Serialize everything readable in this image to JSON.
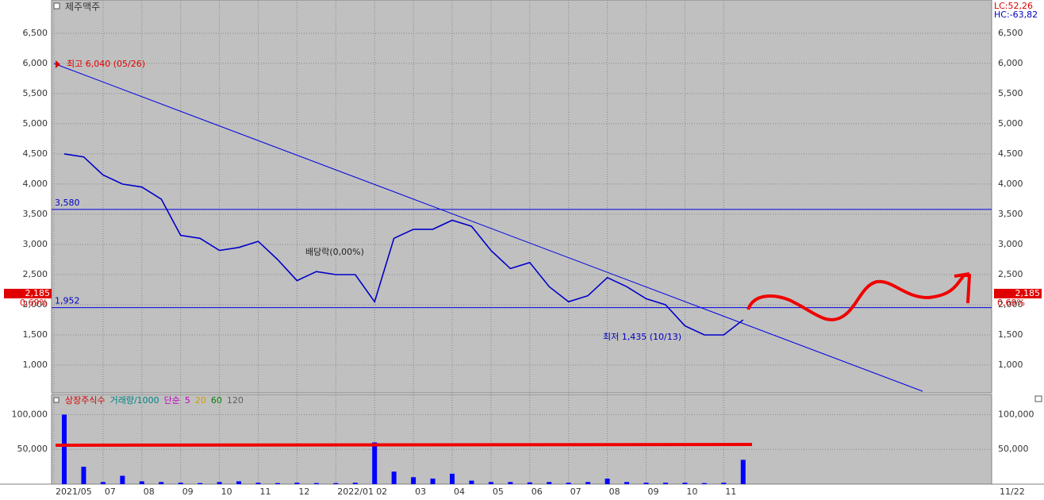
{
  "chart_data": [
    {
      "type": "line",
      "title": "제주맥주",
      "categories": [
        "2021/05",
        null,
        "07",
        null,
        "08",
        null,
        "09",
        null,
        "10",
        null,
        "11",
        null,
        "12",
        null,
        "2022/01",
        null,
        "02",
        null,
        "03",
        null,
        "04",
        null,
        "05",
        null,
        "06",
        null,
        "07",
        null,
        "08",
        null,
        "09",
        null,
        "10",
        null,
        "11",
        null,
        null,
        null,
        null,
        null,
        null,
        null,
        null,
        null,
        null,
        null,
        null,
        null
      ],
      "values": [
        4500,
        4450,
        4150,
        4000,
        3950,
        3750,
        3150,
        3100,
        2900,
        2950,
        3050,
        2750,
        2400,
        2550,
        2500,
        2500,
        2050,
        3100,
        3250,
        3250,
        3400,
        3300,
        2900,
        2600,
        2700,
        2300,
        2050,
        2150,
        2450,
        2300,
        2100,
        2000,
        1650,
        1500,
        1500,
        1750,
        null,
        null,
        null,
        null,
        null,
        null,
        null,
        null,
        null,
        null,
        null,
        null
      ],
      "color": "#0000c8",
      "ylim": [
        540,
        7050
      ],
      "yticks": [
        {
          "value": 1000,
          "label": "1,000"
        },
        {
          "value": 1500,
          "label": "1,500"
        },
        {
          "value": 2000,
          "label": "2,000"
        },
        {
          "value": 2500,
          "label": "2,500"
        },
        {
          "value": 3000,
          "label": "3,000"
        },
        {
          "value": 3500,
          "label": "3,500"
        },
        {
          "value": 4000,
          "label": "4,000"
        },
        {
          "value": 4500,
          "label": "4,500"
        },
        {
          "value": 5000,
          "label": "5,000"
        },
        {
          "value": 5500,
          "label": "5,500"
        },
        {
          "value": 6000,
          "label": "6,000"
        },
        {
          "value": 6500,
          "label": "6,500"
        }
      ],
      "grid": true,
      "levels": [
        {
          "value": 3580,
          "label": "3,580"
        },
        {
          "value": 1952,
          "label": "1,952"
        }
      ],
      "current": {
        "value": 2185,
        "label": "2,185"
      },
      "change_label": "0,69%",
      "high_label": "최고 6,040 (05/26)",
      "low_label": "최저 1,435 (10/13)",
      "note": "배당락(0,00%)",
      "lc": "LC:52,26",
      "hc": "HC:-63,82",
      "last_date": "11/22"
    },
    {
      "type": "bar",
      "legend": [
        {
          "name": "상장주식수",
          "color": "#d00000"
        },
        {
          "name": "거래량/1000",
          "color": "#008080"
        },
        {
          "name": "단순",
          "color": "#c000c0"
        },
        {
          "name": "5",
          "color": "#c000c0"
        },
        {
          "name": "20",
          "color": "#d0a000"
        },
        {
          "name": "60",
          "color": "#008000"
        },
        {
          "name": "120",
          "color": "#606060"
        }
      ],
      "values": [
        100000,
        25000,
        3000,
        12000,
        4000,
        3000,
        2000,
        1500,
        3000,
        4000,
        2000,
        1500,
        2000,
        1500,
        1500,
        2000,
        60000,
        18000,
        10000,
        8000,
        15000,
        5000,
        3000,
        3000,
        2500,
        3000,
        2000,
        3000,
        8000,
        3000,
        2000,
        2000,
        2000,
        1500,
        2000,
        35000,
        null,
        null,
        null,
        null,
        null,
        null,
        null,
        null,
        null,
        null,
        null,
        null
      ],
      "color": "#0000ff",
      "ylim": [
        0,
        129000
      ],
      "yticks": [
        {
          "value": 50000,
          "label": "50,000"
        },
        {
          "value": 100000,
          "label": "100,000"
        }
      ],
      "grid": true
    }
  ]
}
